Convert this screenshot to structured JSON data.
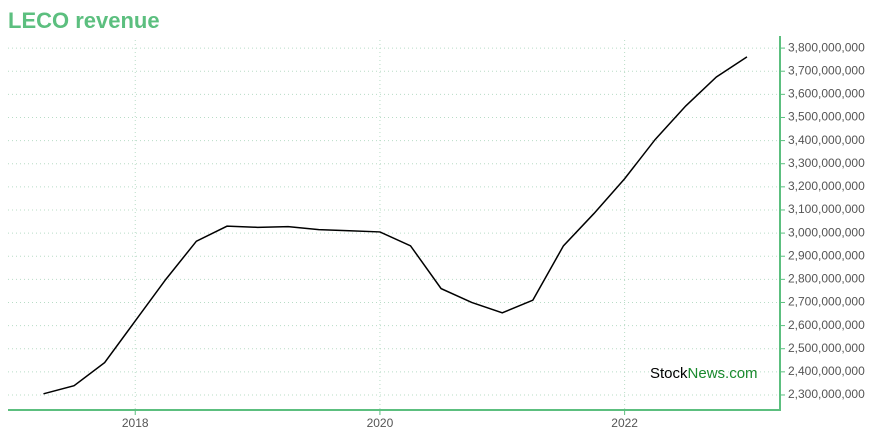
{
  "chart_data": {
    "type": "line",
    "title": "LECO revenue",
    "x": [
      2017.25,
      2017.5,
      2017.75,
      2018,
      2018.25,
      2018.5,
      2018.75,
      2019,
      2019.25,
      2019.5,
      2019.75,
      2020,
      2020.25,
      2020.5,
      2020.75,
      2021,
      2021.25,
      2021.5,
      2021.75,
      2022,
      2022.25,
      2022.5,
      2022.75,
      2023
    ],
    "values": [
      2305000000,
      2340000000,
      2440000000,
      2620000000,
      2800000000,
      2965000000,
      3030000000,
      3025000000,
      3028000000,
      3015000000,
      3010000000,
      3005000000,
      2945000000,
      2760000000,
      2700000000,
      2655000000,
      2710000000,
      2945000000,
      3085000000,
      3235000000,
      3405000000,
      3550000000,
      3675000000,
      3762000000
    ],
    "color": "#000000",
    "xlim": [
      2016.96,
      2023.27
    ],
    "xticks": [
      2018,
      2020,
      2022
    ],
    "ylim": [
      2235000000,
      3835000000
    ],
    "yticks": [
      {
        "value": 2300000000,
        "label": "2,300,000,000"
      },
      {
        "value": 2400000000,
        "label": "2,400,000,000"
      },
      {
        "value": 2500000000,
        "label": "2,500,000,000"
      },
      {
        "value": 2600000000,
        "label": "2,600,000,000"
      },
      {
        "value": 2700000000,
        "label": "2,700,000,000"
      },
      {
        "value": 2800000000,
        "label": "2,800,000,000"
      },
      {
        "value": 2900000000,
        "label": "2,900,000,000"
      },
      {
        "value": 3000000000,
        "label": "3,000,000,000"
      },
      {
        "value": 3100000000,
        "label": "3,100,000,000"
      },
      {
        "value": 3200000000,
        "label": "3,200,000,000"
      },
      {
        "value": 3300000000,
        "label": "3,300,000,000"
      },
      {
        "value": 3400000000,
        "label": "3,400,000,000"
      },
      {
        "value": 3500000000,
        "label": "3,500,000,000"
      },
      {
        "value": 3600000000,
        "label": "3,600,000,000"
      },
      {
        "value": 3700000000,
        "label": "3,700,000,000"
      },
      {
        "value": 3800000000,
        "label": "3,800,000,000"
      }
    ],
    "grid": true,
    "axis_color": "#5cbf7f",
    "watermark": {
      "stock": "Stock",
      "news": "News.com"
    }
  }
}
